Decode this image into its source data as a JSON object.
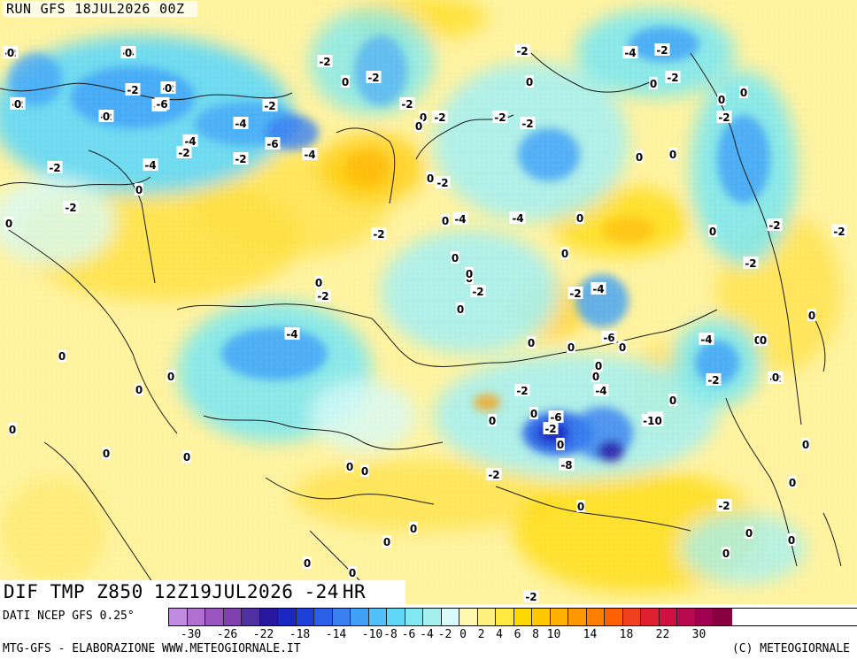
{
  "header": {
    "run_label": "RUN GFS 18JUL2026 00Z",
    "run_parts": [
      "RUN",
      "GFS",
      "18JUL2026",
      "00Z"
    ]
  },
  "title": {
    "field": "DIF TMP Z850",
    "valid": "12Z19JUL2026",
    "separator": "-24",
    "unit": "HR"
  },
  "source": "DATI NCEP GFS 0.25°",
  "credit_left": "MTG-GFS - ELABORAZIONE WWW.METEOGIORNALE.IT",
  "credit_right": "(C) METEOGIORNALE",
  "legend": {
    "ticks": [
      "-30",
      "-26",
      "-22",
      "-18",
      "-14",
      "-10",
      "-8",
      "-6",
      "-4",
      "-2",
      "0",
      "2",
      "4",
      "6",
      "8",
      "10",
      "14",
      "18",
      "22",
      "30"
    ],
    "colors": [
      "#c08be0",
      "#b070d0",
      "#9b55c0",
      "#8040b0",
      "#5030a0",
      "#2818a0",
      "#1a28c0",
      "#1e40d8",
      "#2a60e8",
      "#3a80f0",
      "#40a0f8",
      "#50c0f8",
      "#60d8f8",
      "#80e8f0",
      "#a8f0f0",
      "#d8faf8",
      "#fff8b0",
      "#fff080",
      "#ffe840",
      "#ffd800",
      "#ffc800",
      "#ffb000",
      "#ff9800",
      "#ff8000",
      "#ff6000",
      "#f04020",
      "#e02030",
      "#d01040",
      "#b80850",
      "#a00050",
      "#880040"
    ]
  },
  "contour_labels": [
    "-2",
    "-4",
    "-2",
    "-2",
    "-2",
    "-4",
    "-2",
    "-2",
    "-6",
    "-6",
    "-4",
    "-4",
    "-2",
    "-4",
    "-2",
    "-2",
    "-2",
    "-2",
    "-4",
    "-2",
    "0",
    "0",
    "-2",
    "-2",
    "-2",
    "-2",
    "-4",
    "-2",
    "-2",
    "0",
    "0",
    "0",
    "-2",
    "0",
    "-2",
    "-2",
    "-2",
    "-4",
    "-6",
    "0",
    "0",
    "0",
    "-2",
    "0",
    "0",
    "-2",
    "-4",
    "0",
    "0",
    "0",
    "-4",
    "-2",
    "-2",
    "0",
    "0",
    "-2",
    "0",
    "0",
    "0",
    "-4",
    "-2",
    "-2",
    "0",
    "0",
    "-2",
    "-4",
    "0",
    "0",
    "-6",
    "-2",
    "0",
    "-4",
    "0",
    "0",
    "0",
    "0",
    "-2",
    "-2",
    "0",
    "-2",
    "0",
    "-6",
    "-10",
    "-2",
    "0",
    "0",
    "0",
    "-8",
    "-2",
    "0",
    "0",
    "0",
    "0",
    "0",
    "0",
    "0",
    "-2",
    "-2",
    "0",
    "0",
    "0",
    "0",
    "0",
    "0",
    "0",
    "0",
    "0",
    "0",
    "0",
    "0",
    "0",
    "0",
    "0",
    "0",
    "0",
    "-2"
  ],
  "icons": {
    "map": "weather-map-field"
  }
}
